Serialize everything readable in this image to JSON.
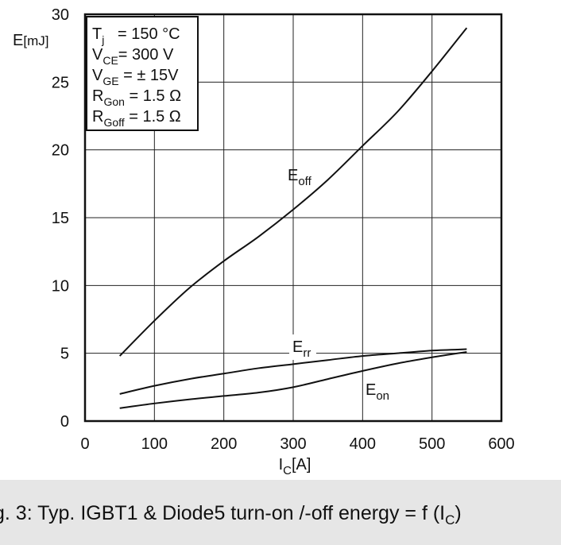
{
  "chart_data": {
    "type": "line",
    "ylabel": "E",
    "ylabel_unit": "[mJ]",
    "xlabel": "I",
    "xlabel_sub": "C",
    "xlabel_unit": "[A]",
    "xlim": [
      0,
      600
    ],
    "ylim": [
      0,
      30
    ],
    "xticks": [
      "0",
      "100",
      "200",
      "300",
      "400",
      "500",
      "600"
    ],
    "yticks": [
      "0",
      "5",
      "10",
      "15",
      "20",
      "25",
      "30"
    ],
    "grid": true,
    "conditions": [
      {
        "main": "T",
        "sub": "j",
        "rest": "   = 150 °C"
      },
      {
        "main": "V",
        "sub": "CE",
        "rest": "= 300 V"
      },
      {
        "main": "V",
        "sub": "GE",
        "rest": " = ± 15V"
      },
      {
        "main": "R",
        "sub": "Gon",
        "rest": " = 1.5 Ω"
      },
      {
        "main": "R",
        "sub": "Goff",
        "rest": " = 1.5 Ω"
      }
    ],
    "series": [
      {
        "name": "E_off",
        "label_main": "E",
        "label_sub": "off",
        "x": [
          50,
          100,
          150,
          200,
          250,
          300,
          350,
          400,
          450,
          500,
          550
        ],
        "y": [
          4.8,
          7.4,
          9.8,
          11.8,
          13.6,
          15.6,
          17.8,
          20.3,
          22.8,
          25.8,
          29.0
        ]
      },
      {
        "name": "E_rr",
        "label_main": "E",
        "label_sub": "rr",
        "x": [
          50,
          100,
          150,
          200,
          250,
          300,
          350,
          400,
          450,
          500,
          550
        ],
        "y": [
          2.0,
          2.6,
          3.1,
          3.5,
          3.9,
          4.2,
          4.5,
          4.8,
          5.0,
          5.2,
          5.3
        ]
      },
      {
        "name": "E_on",
        "label_main": "E",
        "label_sub": "on",
        "x": [
          50,
          100,
          150,
          200,
          250,
          300,
          350,
          400,
          450,
          500,
          550
        ],
        "y": [
          0.95,
          1.3,
          1.6,
          1.85,
          2.1,
          2.5,
          3.1,
          3.7,
          4.25,
          4.7,
          5.1
        ]
      }
    ],
    "caption_main": "g. 3: Typ. IGBT1 & Diode5 turn-on /-off energy = f (I",
    "caption_sub": "C",
    "caption_end": ")"
  }
}
